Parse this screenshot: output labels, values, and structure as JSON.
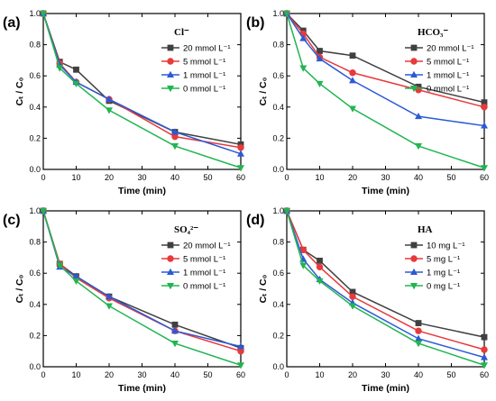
{
  "chart_data": [
    {
      "type": "line",
      "panel_label": "(a)",
      "legend_title": "Cl⁻",
      "xlabel": "Time (min)",
      "ylabel": "Cₜ / C₀",
      "xlim": [
        0,
        60
      ],
      "ylim": [
        0,
        1.0
      ],
      "xticks": [
        "0",
        "10",
        "20",
        "30",
        "40",
        "50",
        "60"
      ],
      "yticks": [
        "0.0",
        "0.2",
        "0.4",
        "0.6",
        "0.8",
        "1.0"
      ],
      "x": [
        0,
        5,
        10,
        20,
        40,
        60
      ],
      "legend_position": "top-right",
      "series": [
        {
          "name": "20 mmol L⁻¹",
          "color": "#404040",
          "marker": "square",
          "values": [
            1.0,
            0.69,
            0.64,
            0.44,
            0.24,
            0.16
          ]
        },
        {
          "name": "5   mmol L⁻¹",
          "color": "#e8393b",
          "marker": "circle",
          "values": [
            1.0,
            0.68,
            0.56,
            0.45,
            0.21,
            0.14
          ]
        },
        {
          "name": "1   mmol L⁻¹",
          "color": "#2b5ad6",
          "marker": "triangle-up",
          "values": [
            1.0,
            0.67,
            0.56,
            0.45,
            0.24,
            0.1
          ]
        },
        {
          "name": "0   mmol L⁻¹",
          "color": "#21b551",
          "marker": "triangle-down",
          "values": [
            1.0,
            0.65,
            0.55,
            0.38,
            0.15,
            0.01
          ]
        }
      ]
    },
    {
      "type": "line",
      "panel_label": "(b)",
      "legend_title": "HCO₃⁻",
      "xlabel": "Time (min)",
      "ylabel": "Cₜ / C₀",
      "xlim": [
        0,
        60
      ],
      "ylim": [
        0,
        1.0
      ],
      "xticks": [
        "0",
        "10",
        "20",
        "30",
        "40",
        "50",
        "60"
      ],
      "yticks": [
        "0.0",
        "0.2",
        "0.4",
        "0.6",
        "0.8",
        "1.0"
      ],
      "x": [
        0,
        5,
        10,
        20,
        40,
        60
      ],
      "legend_position": "top-right",
      "series": [
        {
          "name": "20 mmol L⁻¹",
          "color": "#404040",
          "marker": "square",
          "values": [
            1.0,
            0.89,
            0.76,
            0.73,
            0.53,
            0.43
          ]
        },
        {
          "name": "5   mmol L⁻¹",
          "color": "#e8393b",
          "marker": "circle",
          "values": [
            1.0,
            0.87,
            0.72,
            0.62,
            0.51,
            0.4
          ]
        },
        {
          "name": "1   mmol L⁻¹",
          "color": "#2b5ad6",
          "marker": "triangle-up",
          "values": [
            1.0,
            0.84,
            0.71,
            0.57,
            0.34,
            0.28
          ]
        },
        {
          "name": "0   mmol L⁻¹",
          "color": "#21b551",
          "marker": "triangle-down",
          "values": [
            1.0,
            0.65,
            0.55,
            0.39,
            0.15,
            0.01
          ]
        }
      ]
    },
    {
      "type": "line",
      "panel_label": "(c)",
      "legend_title": "SO₄²⁻",
      "xlabel": "Time (min)",
      "ylabel": "Cₜ / C₀",
      "xlim": [
        0,
        60
      ],
      "ylim": [
        0,
        1.0
      ],
      "xticks": [
        "0",
        "10",
        "20",
        "30",
        "40",
        "50",
        "60"
      ],
      "yticks": [
        "0.0",
        "0.2",
        "0.4",
        "0.6",
        "0.8",
        "1.0"
      ],
      "x": [
        0,
        5,
        10,
        20,
        40,
        60
      ],
      "legend_position": "top-right",
      "series": [
        {
          "name": "20 mmol L⁻¹",
          "color": "#404040",
          "marker": "square",
          "values": [
            1.0,
            0.66,
            0.58,
            0.45,
            0.27,
            0.12
          ]
        },
        {
          "name": "5   mmol L⁻¹",
          "color": "#e8393b",
          "marker": "circle",
          "values": [
            1.0,
            0.66,
            0.57,
            0.44,
            0.23,
            0.1
          ]
        },
        {
          "name": "1   mmol L⁻¹",
          "color": "#2b5ad6",
          "marker": "triangle-up",
          "values": [
            1.0,
            0.64,
            0.58,
            0.45,
            0.23,
            0.13
          ]
        },
        {
          "name": "0   mmol L⁻¹",
          "color": "#21b551",
          "marker": "triangle-down",
          "values": [
            1.0,
            0.65,
            0.55,
            0.39,
            0.15,
            0.01
          ]
        }
      ]
    },
    {
      "type": "line",
      "panel_label": "(d)",
      "legend_title": "HA",
      "xlabel": "Time (min)",
      "ylabel": "Cₜ / C₀",
      "xlim": [
        0,
        60
      ],
      "ylim": [
        0,
        1.0
      ],
      "xticks": [
        "0",
        "10",
        "20",
        "30",
        "40",
        "50",
        "60"
      ],
      "yticks": [
        "0.0",
        "0.2",
        "0.4",
        "0.6",
        "0.8",
        "1.0"
      ],
      "x": [
        0,
        5,
        10,
        20,
        40,
        60
      ],
      "legend_position": "top-right",
      "series": [
        {
          "name": "10 mg L⁻¹",
          "color": "#404040",
          "marker": "square",
          "values": [
            1.0,
            0.75,
            0.68,
            0.48,
            0.28,
            0.19
          ]
        },
        {
          "name": "5   mg L⁻¹",
          "color": "#e8393b",
          "marker": "circle",
          "values": [
            1.0,
            0.75,
            0.64,
            0.45,
            0.23,
            0.11
          ]
        },
        {
          "name": "1   mg L⁻¹",
          "color": "#2b5ad6",
          "marker": "triangle-up",
          "values": [
            1.0,
            0.69,
            0.56,
            0.41,
            0.18,
            0.06
          ]
        },
        {
          "name": "0   mg L⁻¹",
          "color": "#21b551",
          "marker": "triangle-down",
          "values": [
            1.0,
            0.65,
            0.55,
            0.39,
            0.15,
            0.01
          ]
        }
      ]
    }
  ]
}
